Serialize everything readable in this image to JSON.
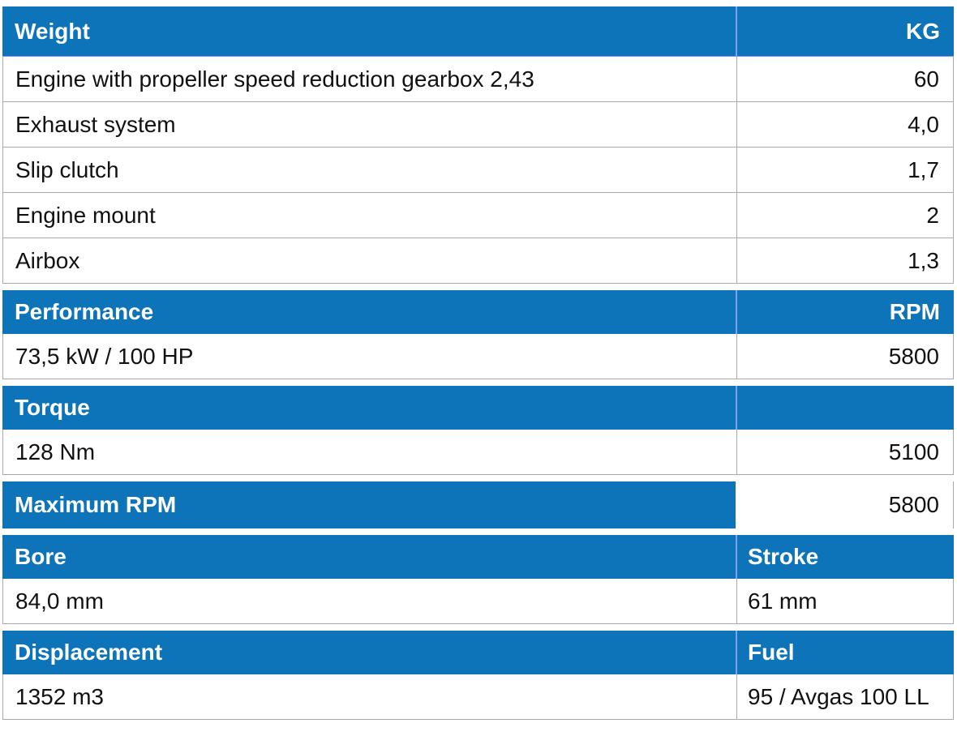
{
  "colors": {
    "header_blue": "#0e74ba",
    "header_text": "#ffffff",
    "body_text": "#111111",
    "grid_line": "#a9a9a9",
    "header_divider": "#7ea2ef",
    "header_underline": "#8795ec"
  },
  "table": {
    "columns": [
      "label",
      "value"
    ],
    "rows": [
      {
        "kind": "section-header",
        "left": "Weight",
        "right": "KG"
      },
      {
        "kind": "data",
        "left": "Engine with propeller speed reduction gearbox 2,43",
        "right": "60"
      },
      {
        "kind": "data",
        "left": "Exhaust system",
        "right": "4,0"
      },
      {
        "kind": "data",
        "left": "Slip clutch",
        "right": "1,7"
      },
      {
        "kind": "data",
        "left": "Engine mount",
        "right": "2"
      },
      {
        "kind": "data",
        "left": "Airbox",
        "right": "1,3"
      },
      {
        "kind": "section-header",
        "left": "Performance",
        "right": "RPM"
      },
      {
        "kind": "data",
        "left": "73,5 kW / 100 HP",
        "right": "5800"
      },
      {
        "kind": "section-header",
        "left": "Torque",
        "right": ""
      },
      {
        "kind": "data",
        "left": "128 Nm",
        "right": "5100"
      },
      {
        "kind": "header-with-value",
        "left": "Maximum RPM",
        "right": "5800"
      },
      {
        "kind": "section-header",
        "left": "Bore",
        "right": "Stroke"
      },
      {
        "kind": "data",
        "left": "84,0 mm",
        "right": "61 mm"
      },
      {
        "kind": "section-header",
        "left": "Displacement",
        "right": "Fuel"
      },
      {
        "kind": "data",
        "left": "1352 m3",
        "right": "95 / Avgas 100 LL"
      }
    ]
  }
}
